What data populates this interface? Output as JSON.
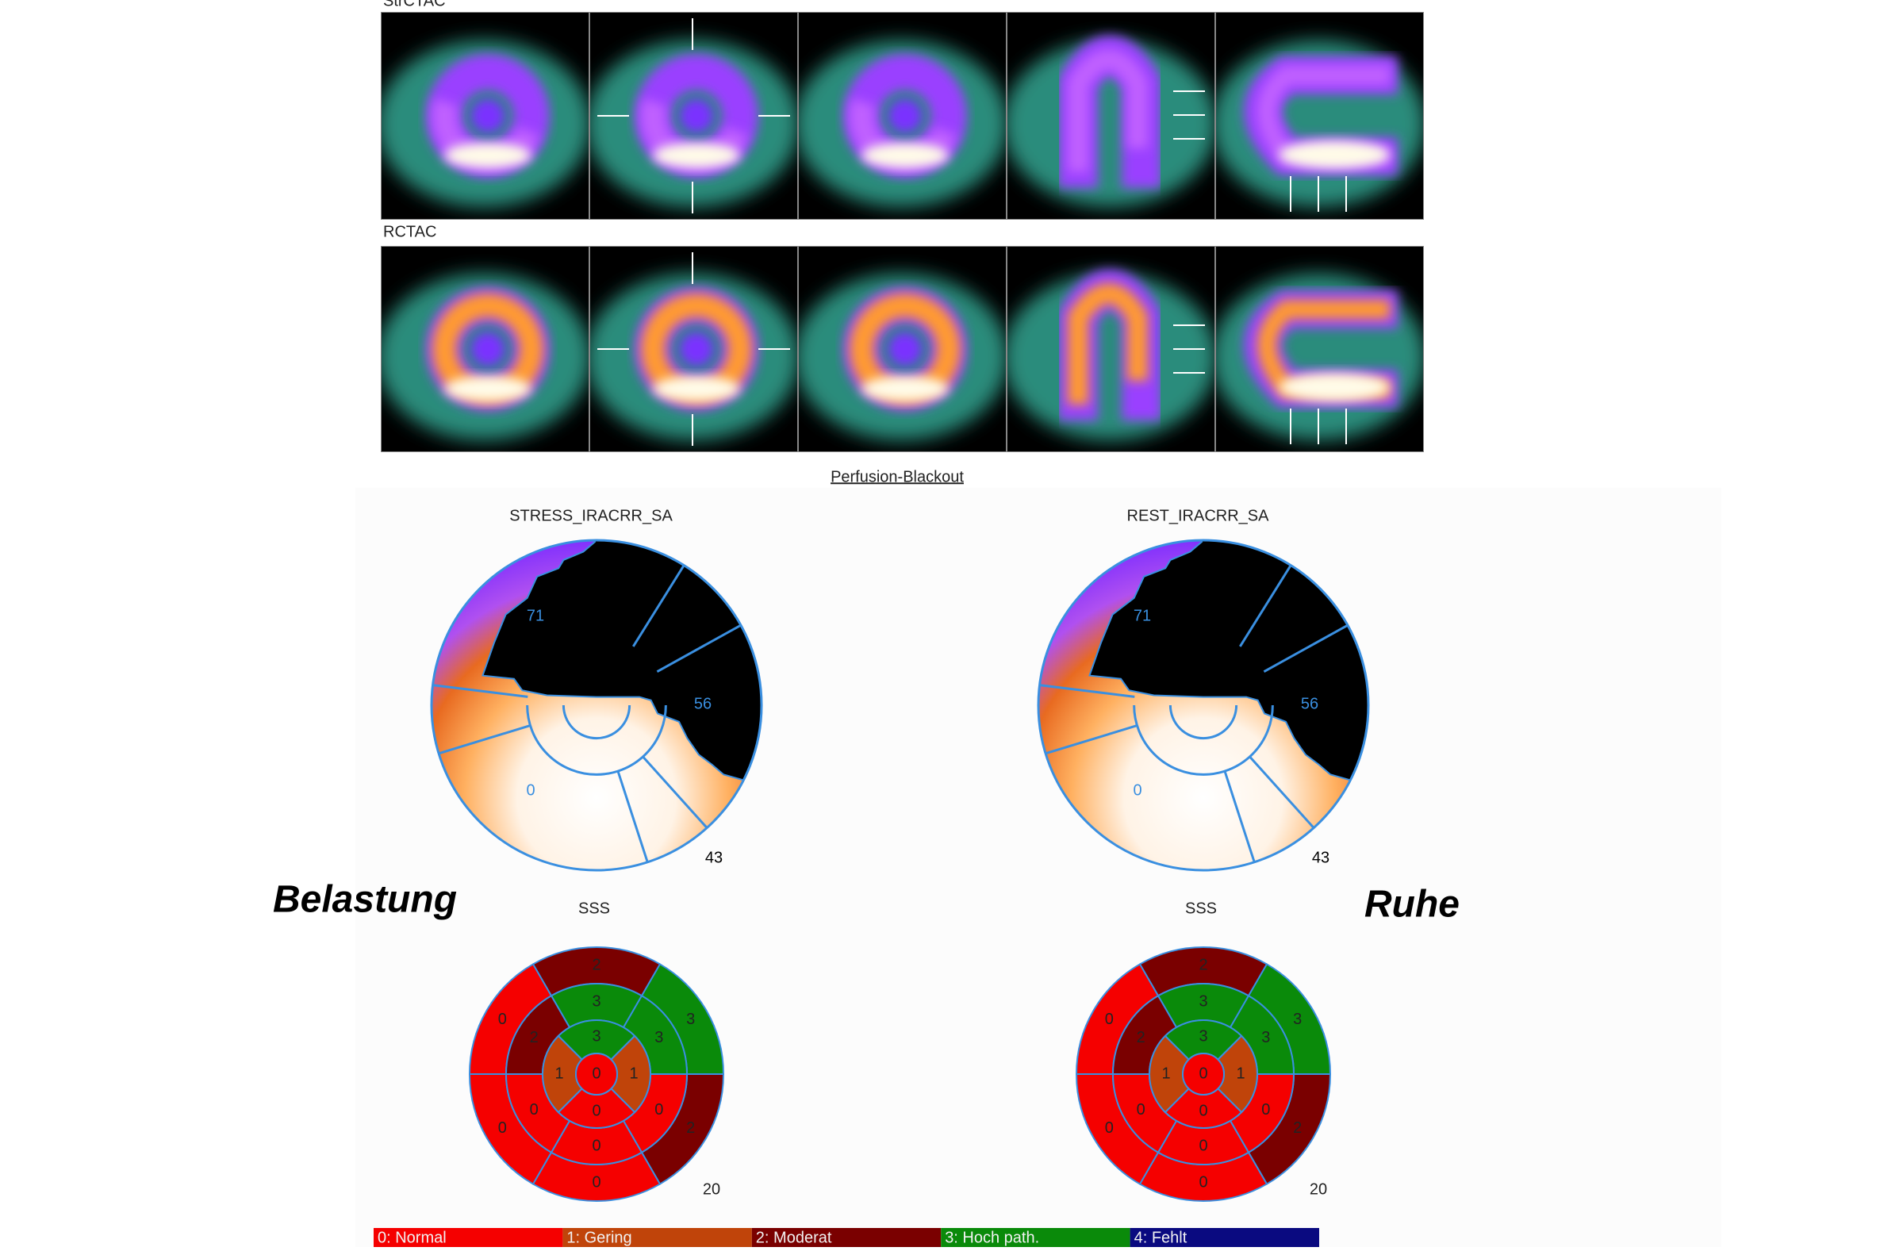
{
  "scans": {
    "stress_label": "StrCTAC",
    "rest_label": "RCTAC"
  },
  "perfusion_link": "Perfusion-Blackout",
  "panels": [
    {
      "title": "STRESS_IRACRR_SA",
      "polar_labels": [
        71,
        56,
        0,
        43
      ],
      "side_label": "Belastung",
      "score_title": "SSS",
      "scores": {
        "basal": [
          2,
          3,
          2,
          0,
          0,
          0
        ],
        "mid": [
          3,
          3,
          0,
          0,
          0,
          2
        ],
        "apical": [
          3,
          1,
          0,
          1
        ],
        "apex": [
          0
        ]
      },
      "total": 20
    },
    {
      "title": "REST_IRACRR_SA",
      "polar_labels": [
        71,
        56,
        0,
        43
      ],
      "side_label": "Ruhe",
      "score_title": "SSS",
      "scores": {
        "basal": [
          2,
          3,
          2,
          0,
          0,
          0
        ],
        "mid": [
          3,
          3,
          0,
          0,
          0,
          2
        ],
        "apical": [
          3,
          1,
          0,
          1
        ],
        "apex": [
          0
        ]
      },
      "total": 20
    }
  ],
  "legend": [
    {
      "label": "0: Normal",
      "color": "#f50000"
    },
    {
      "label": "1: Gering",
      "color": "#c0440a"
    },
    {
      "label": "2: Moderat",
      "color": "#7a0000"
    },
    {
      "label": "3: Hoch path.",
      "color": "#0a8a0a"
    },
    {
      "label": "4: Fehlt",
      "color": "#0a0a80"
    }
  ]
}
